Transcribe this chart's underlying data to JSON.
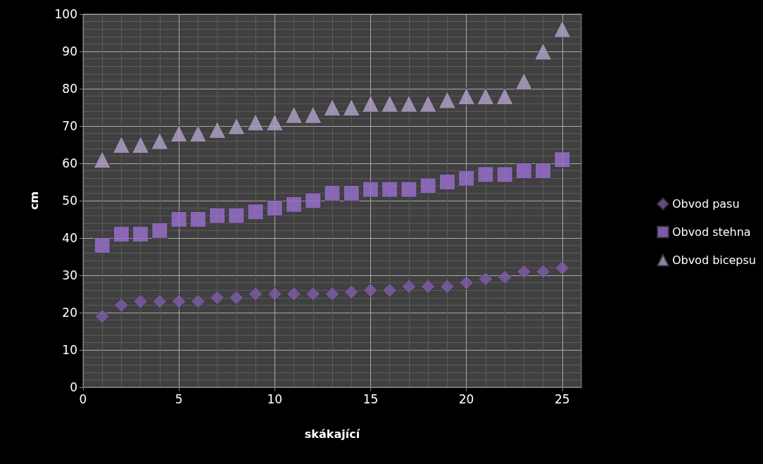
{
  "chart_data": {
    "type": "scatter",
    "xlabel": "skákající",
    "ylabel": "cm",
    "x": [
      1,
      2,
      3,
      4,
      5,
      6,
      7,
      8,
      9,
      10,
      11,
      12,
      13,
      14,
      15,
      16,
      17,
      18,
      19,
      20,
      21,
      22,
      23,
      24,
      25
    ],
    "series": [
      {
        "name": "Obvod pasu",
        "color": "#7d5ba6",
        "marker": "diamond",
        "values": [
          19,
          22,
          23,
          23,
          23,
          23,
          24,
          24,
          25,
          25,
          25,
          25,
          25,
          25.5,
          26,
          26,
          27,
          27,
          27,
          28,
          29,
          29.5,
          31,
          31,
          32
        ]
      },
      {
        "name": "Obvod stehna",
        "color": "#9a6fd0",
        "marker": "square",
        "values": [
          38,
          41,
          41,
          42,
          45,
          45,
          46,
          46,
          47,
          48,
          49,
          50,
          52,
          52,
          53,
          53,
          53,
          54,
          55,
          56,
          57,
          57,
          58,
          58,
          61
        ]
      },
      {
        "name": "Obvod bicepsu",
        "color": "#b3a2c8",
        "marker": "triangle",
        "values": [
          61,
          65,
          65,
          66,
          68,
          68,
          69,
          70,
          71,
          71,
          73,
          73,
          75,
          75,
          76,
          76,
          76,
          76,
          77,
          78,
          78,
          78,
          82,
          90,
          96
        ]
      }
    ],
    "xlim": [
      0,
      26
    ],
    "xticks": [
      0,
      5,
      10,
      15,
      20,
      25
    ],
    "ylim": [
      0,
      100
    ],
    "yticks": [
      0,
      10,
      20,
      30,
      40,
      50,
      60,
      70,
      80,
      90,
      100
    ],
    "grid": true,
    "legend": "right"
  }
}
